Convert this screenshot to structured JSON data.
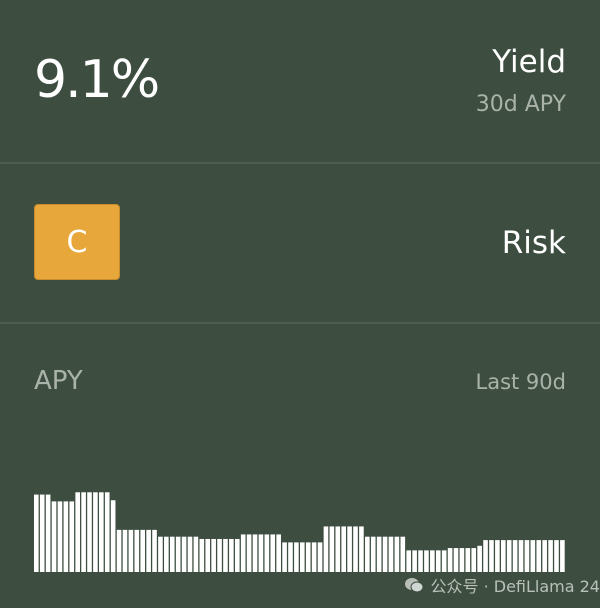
{
  "yield": {
    "value": "9.1%",
    "label": "Yield",
    "sublabel": "30d APY"
  },
  "risk": {
    "grade": "C",
    "label": "Risk",
    "badge_color": "#e8a73a"
  },
  "chart_data": {
    "type": "bar",
    "title": "APY",
    "range_label": "Last 90d",
    "bar_color": "#ffffff",
    "values": [
      68,
      68,
      68,
      62,
      62,
      62,
      62,
      70,
      70,
      70,
      70,
      70,
      70,
      63,
      37,
      37,
      37,
      37,
      37,
      37,
      37,
      31,
      31,
      31,
      31,
      31,
      31,
      31,
      29,
      29,
      29,
      29,
      29,
      29,
      29,
      33,
      33,
      33,
      33,
      33,
      33,
      33,
      26,
      26,
      26,
      26,
      26,
      26,
      26,
      40,
      40,
      40,
      40,
      40,
      40,
      40,
      31,
      31,
      31,
      31,
      31,
      31,
      31,
      19,
      19,
      19,
      19,
      19,
      19,
      19,
      21,
      21,
      21,
      21,
      21,
      23,
      28,
      28,
      28,
      28,
      28,
      28,
      28,
      28,
      28,
      28,
      28,
      28,
      28,
      28
    ]
  },
  "watermark": {
    "icon": "wechat-icon",
    "text": "公众号 · DefiLlama 24"
  },
  "colors": {
    "background": "#3d4e40",
    "muted_text": "#a9b3aa"
  }
}
